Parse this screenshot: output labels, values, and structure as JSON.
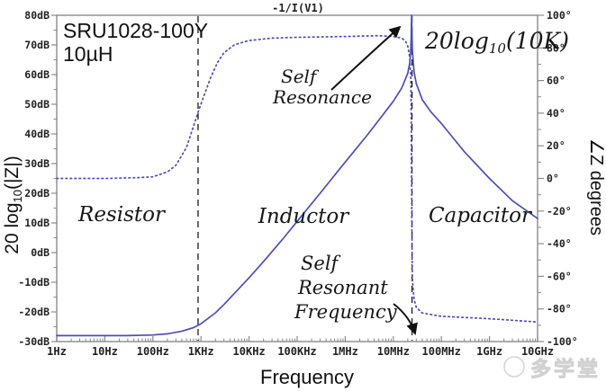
{
  "device": {
    "part_number": "SRU1028-100Y",
    "inductance": "10µH"
  },
  "trace_label": "-1/I(V1)",
  "watermark": {
    "text": "多学堂"
  },
  "annotations": {
    "resistor": "Resistor",
    "inductor": "Inductor",
    "capacitor": "Capacitor",
    "self_resonance": {
      "line1": "Self",
      "line2": "Resonance"
    },
    "self_resonant_frequency": {
      "line1": "Self",
      "line2": "Resonant",
      "line3": "Frequency"
    },
    "peak_equation": {
      "prefix": "20log",
      "subscript": "10",
      "suffix": "(10K)"
    }
  },
  "chart_data": {
    "type": "line",
    "title": "-1/I(V1)",
    "xlabel": "Frequency",
    "x_scale": "log",
    "x_tick_labels": [
      "1Hz",
      "10Hz",
      "100Hz",
      "1KHz",
      "10KHz",
      "100KHz",
      "1MHz",
      "10MHz",
      "100MHz",
      "1GHz",
      "10GHz"
    ],
    "x_tick_freqs": [
      1,
      10,
      100,
      1000,
      10000,
      100000,
      1000000,
      10000000,
      100000000,
      1000000000,
      10000000000
    ],
    "left_axis": {
      "label_prefix": "20 log",
      "label_sub": "10",
      "label_suffix": "(|Z|)",
      "unit": "dB",
      "min": -30,
      "max": 80,
      "major_step": 10,
      "minor_step": 5
    },
    "right_axis": {
      "label": "∠Z degrees",
      "unit": "°",
      "min": -100,
      "max": 100,
      "major_step": 20,
      "minor_step": 10
    },
    "grid": false,
    "series": [
      {
        "name": "impedance-magnitude-db",
        "axis": "left",
        "style": "solid",
        "points": [
          [
            1,
            -28
          ],
          [
            3,
            -28
          ],
          [
            10,
            -28
          ],
          [
            30,
            -28
          ],
          [
            100,
            -27.8
          ],
          [
            200,
            -27.4
          ],
          [
            400,
            -26.5
          ],
          [
            700,
            -25.3
          ],
          [
            1000,
            -24
          ],
          [
            2000,
            -20.3
          ],
          [
            3000,
            -17.5
          ],
          [
            5000,
            -13.7
          ],
          [
            10000,
            -8.5
          ],
          [
            20000,
            -3
          ],
          [
            50000,
            4.5
          ],
          [
            100000,
            10.5
          ],
          [
            300000,
            20
          ],
          [
            1000000,
            30.5
          ],
          [
            3000000,
            40
          ],
          [
            10000000,
            51
          ],
          [
            15000000,
            55.5
          ],
          [
            20000000,
            60.5
          ],
          [
            22000000,
            64
          ],
          [
            23000000,
            68
          ],
          [
            23500000,
            72
          ],
          [
            24000000,
            80
          ],
          [
            24500000,
            73
          ],
          [
            25000000,
            68
          ],
          [
            27000000,
            61
          ],
          [
            30000000,
            57
          ],
          [
            40000000,
            51.5
          ],
          [
            60000000,
            47.5
          ],
          [
            100000000,
            43.5
          ],
          [
            300000000,
            34
          ],
          [
            1000000000,
            25
          ],
          [
            3000000000,
            17.5
          ],
          [
            10000000000,
            11.5
          ]
        ]
      },
      {
        "name": "impedance-phase-degrees",
        "axis": "right",
        "style": "dotted",
        "points": [
          [
            1,
            0
          ],
          [
            10,
            0
          ],
          [
            50,
            0.5
          ],
          [
            100,
            1
          ],
          [
            200,
            4
          ],
          [
            300,
            8
          ],
          [
            500,
            19
          ],
          [
            700,
            32
          ],
          [
            900,
            42
          ],
          [
            1200,
            52
          ],
          [
            1600,
            62
          ],
          [
            2200,
            71
          ],
          [
            3000,
            77
          ],
          [
            5000,
            82
          ],
          [
            10000,
            84.5
          ],
          [
            30000,
            86
          ],
          [
            100000,
            86.5
          ],
          [
            1000000,
            87
          ],
          [
            5000000,
            87.5
          ],
          [
            10000000,
            87
          ],
          [
            15000000,
            86
          ],
          [
            18000000,
            84
          ],
          [
            20000000,
            81
          ],
          [
            22000000,
            74
          ],
          [
            23000000,
            62
          ],
          [
            23500000,
            45
          ],
          [
            24000000,
            0
          ],
          [
            24500000,
            -45
          ],
          [
            25000000,
            -62
          ],
          [
            27000000,
            -74
          ],
          [
            30000000,
            -79
          ],
          [
            40000000,
            -82.5
          ],
          [
            100000000,
            -84.5
          ],
          [
            1000000000,
            -86
          ],
          [
            10000000000,
            -88
          ]
        ]
      }
    ],
    "markers": [
      {
        "name": "resistor-inductor-boundary",
        "freq": 870
      },
      {
        "name": "self-resonant-frequency",
        "freq": 24500000
      }
    ],
    "region_labels": [
      "Resistor",
      "Inductor",
      "Capacitor"
    ],
    "peak": {
      "freq": 24000000,
      "value_db": 80,
      "equation": "20log10(10K)"
    },
    "colors": {
      "trace": "#4f4eb0",
      "device_text": "#3c3c9e",
      "trace_label_text": "#7b2b25",
      "axis_line": "#8a8a8a",
      "annotation": "#161616"
    }
  }
}
